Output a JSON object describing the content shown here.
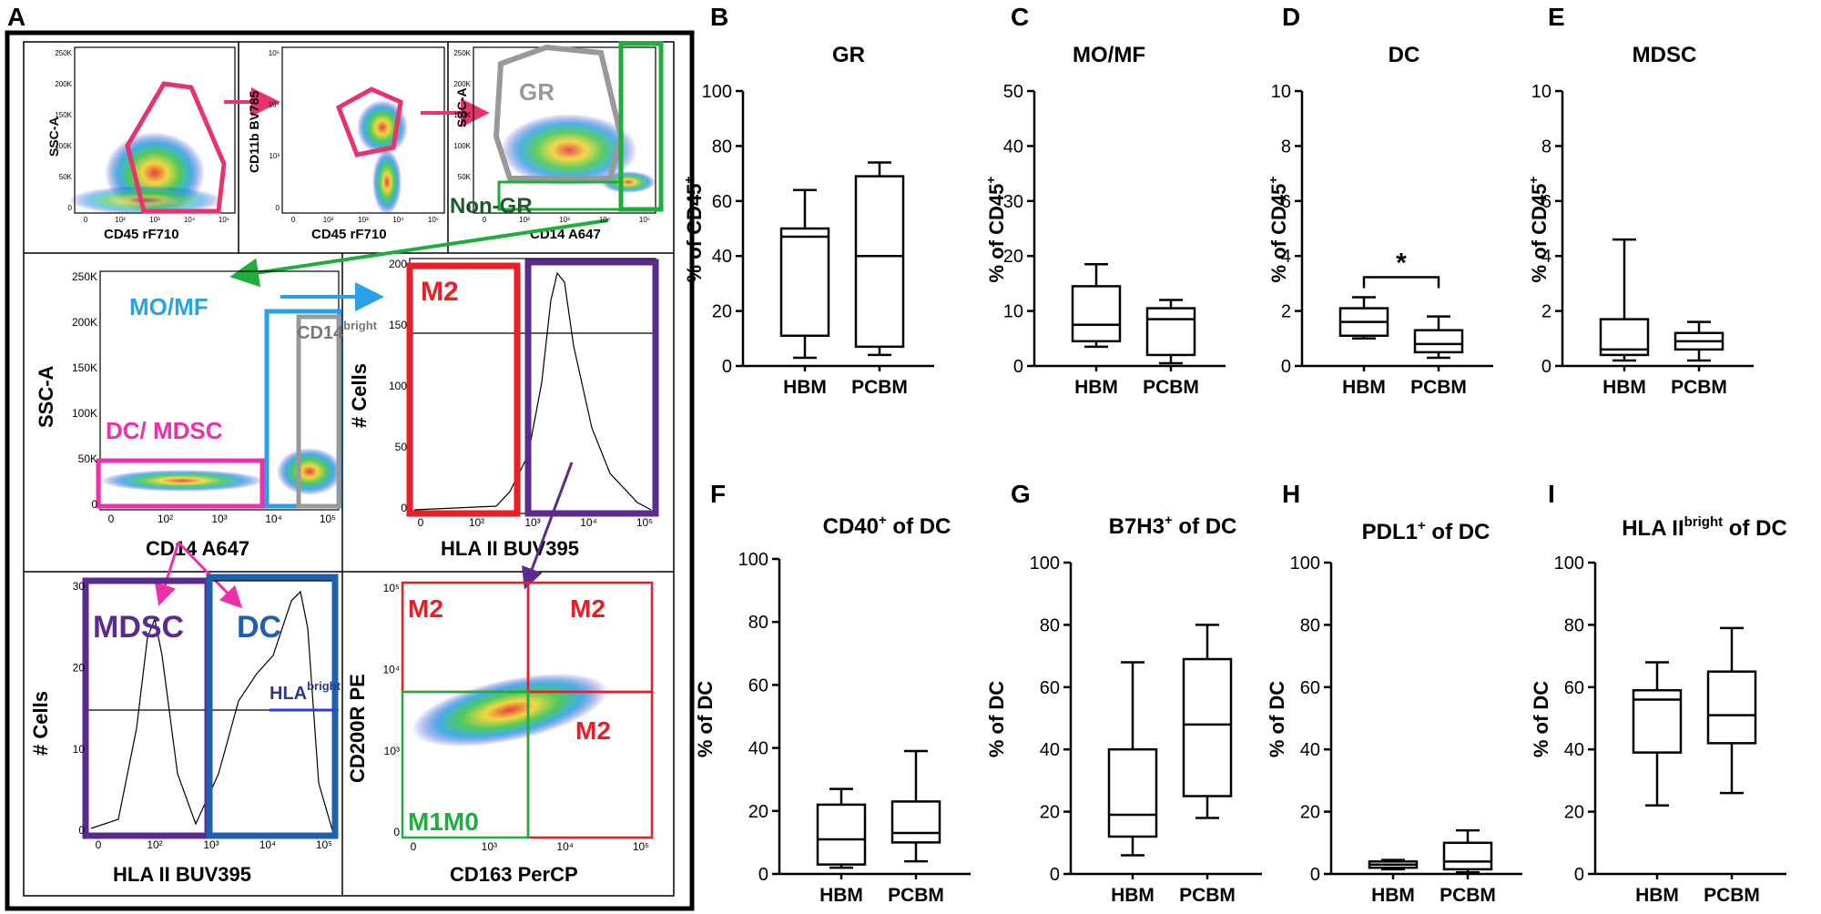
{
  "panel_letters": {
    "A": "A",
    "B": "B",
    "C": "C",
    "D": "D",
    "E": "E",
    "F": "F",
    "G": "G",
    "H": "H",
    "I": "I"
  },
  "flow": {
    "p1": {
      "ylabel": "SSC-A",
      "xlabel": "CD45 rF710",
      "yticks": [
        "250K",
        "200K",
        "150K",
        "100K",
        "50K",
        "0"
      ],
      "xticks": [
        "0",
        "10²",
        "10³",
        "10⁴",
        "10⁵"
      ]
    },
    "p2": {
      "ylabel": "CD11b BV785",
      "xlabel": "CD45 rF710",
      "yticks": [
        "10⁵",
        "10⁴",
        "10³",
        "0"
      ],
      "xticks": [
        "0",
        "10²",
        "10³",
        "10⁴",
        "10⁵"
      ]
    },
    "p3": {
      "ylabel": "SSC-A",
      "xlabel": "CD14 A647",
      "gate_gr": "GR",
      "gate_nongr": "Non-GR",
      "yticks": [
        "250K",
        "200K",
        "150K",
        "100K",
        "50K",
        "0"
      ],
      "xticks": [
        "0",
        "10²",
        "10³",
        "10⁴",
        "10⁵"
      ]
    },
    "p4": {
      "ylabel": "SSC-A",
      "xlabel": "CD14 A647",
      "gate_momf": "MO/MF",
      "gate_dcmdsc": "DC/ MDSC",
      "gate_cd14": "CD14",
      "gate_cd14_sup": "bright",
      "yticks": [
        "250K",
        "200K",
        "150K",
        "100K",
        "50K",
        "0"
      ],
      "xticks": [
        "0",
        "10²",
        "10³",
        "10⁴",
        "10⁵"
      ]
    },
    "p5": {
      "ylabel": "# Cells",
      "xlabel": "HLA II BUV395",
      "gate_m2": "M2",
      "yticks": [
        "200",
        "150",
        "100",
        "50",
        "0"
      ],
      "xticks": [
        "0",
        "10²",
        "10³",
        "10⁴",
        "10⁵"
      ]
    },
    "p6": {
      "ylabel": "# Cells",
      "xlabel": "HLA II BUV395",
      "gate_mdsc": "MDSC",
      "gate_dc": "DC",
      "gate_hla": "HLA",
      "gate_hla_sup": "bright",
      "yticks": [
        "30",
        "20",
        "10",
        "0"
      ],
      "xticks": [
        "0",
        "10²",
        "10³",
        "10⁴",
        "10⁵"
      ]
    },
    "p7": {
      "ylabel": "CD200R PE",
      "xlabel": "CD163 PerCP",
      "gate_m2a": "M2",
      "gate_m2b": "M2",
      "gate_m2c": "M2",
      "gate_m1m0": "M1M0",
      "yticks": [
        "10⁵",
        "10⁴",
        "10³",
        "0"
      ],
      "xticks": [
        "0",
        "10³",
        "10⁴",
        "10⁵"
      ]
    }
  },
  "colors": {
    "pink": "#e8336d",
    "magenta": "#f02fa8",
    "grey": "#999999",
    "green": "#1fae3c",
    "lightblue": "#2aa0e8",
    "red": "#ee1c24",
    "purple": "#5b2a8e",
    "blue": "#1f5fb0",
    "navy": "#2d3a8c"
  },
  "chart_data": [
    {
      "panel": "B",
      "type": "box",
      "title": "GR",
      "ylabel": "% of CD45",
      "ylabel_sup": "+",
      "categories": [
        "HBM",
        "PCBM"
      ],
      "ylim": [
        0,
        100
      ],
      "yticks": [
        "0",
        "20",
        "40",
        "60",
        "80",
        "100"
      ],
      "boxes": [
        {
          "min": 3,
          "q1": 11,
          "median": 47,
          "q3": 50,
          "max": 64
        },
        {
          "min": 4,
          "q1": 7,
          "median": 40,
          "q3": 69,
          "max": 74
        }
      ]
    },
    {
      "panel": "C",
      "type": "box",
      "title": "MO/MF",
      "ylabel": "% of CD45",
      "ylabel_sup": "+",
      "categories": [
        "HBM",
        "PCBM"
      ],
      "ylim": [
        0,
        50
      ],
      "yticks": [
        "0",
        "10",
        "20",
        "30",
        "40",
        "50"
      ],
      "boxes": [
        {
          "min": 3.5,
          "q1": 4.5,
          "median": 7.5,
          "q3": 14.5,
          "max": 18.5
        },
        {
          "min": 0.5,
          "q1": 2,
          "median": 8.5,
          "q3": 10.5,
          "max": 12
        }
      ]
    },
    {
      "panel": "D",
      "type": "box",
      "title": "DC",
      "ylabel": "% of CD45",
      "ylabel_sup": "+",
      "categories": [
        "HBM",
        "PCBM"
      ],
      "ylim": [
        0,
        10
      ],
      "yticks": [
        "0",
        "2",
        "4",
        "6",
        "8",
        "10"
      ],
      "boxes": [
        {
          "min": 1,
          "q1": 1.1,
          "median": 1.6,
          "q3": 2.1,
          "max": 2.5
        },
        {
          "min": 0.3,
          "q1": 0.5,
          "median": 0.8,
          "q3": 1.3,
          "max": 1.8
        }
      ],
      "significance": {
        "label": "*"
      }
    },
    {
      "panel": "E",
      "type": "box",
      "title": "MDSC",
      "ylabel": "% of CD45",
      "ylabel_sup": "+",
      "categories": [
        "HBM",
        "PCBM"
      ],
      "ylim": [
        0,
        10
      ],
      "yticks": [
        "0",
        "2",
        "4",
        "6",
        "8",
        "10"
      ],
      "boxes": [
        {
          "min": 0.2,
          "q1": 0.4,
          "median": 0.6,
          "q3": 1.7,
          "max": 4.6
        },
        {
          "min": 0.2,
          "q1": 0.6,
          "median": 0.9,
          "q3": 1.2,
          "max": 1.6
        }
      ]
    },
    {
      "panel": "F",
      "type": "box",
      "title": "CD40",
      "title_sup": "+",
      "title_suffix": " of DC",
      "ylabel": "% of DC",
      "categories": [
        "HBM",
        "PCBM"
      ],
      "ylim": [
        0,
        100
      ],
      "yticks": [
        "0",
        "20",
        "40",
        "60",
        "80",
        "100"
      ],
      "boxes": [
        {
          "min": 2,
          "q1": 3,
          "median": 11,
          "q3": 22,
          "max": 27
        },
        {
          "min": 4,
          "q1": 10,
          "median": 13,
          "q3": 23,
          "max": 39
        }
      ]
    },
    {
      "panel": "G",
      "type": "box",
      "title": "B7H3",
      "title_sup": "+",
      "title_suffix": " of DC",
      "ylabel": "% of DC",
      "categories": [
        "HBM",
        "PCBM"
      ],
      "ylim": [
        0,
        100
      ],
      "yticks": [
        "0",
        "20",
        "40",
        "60",
        "80",
        "100"
      ],
      "boxes": [
        {
          "min": 6,
          "q1": 12,
          "median": 19,
          "q3": 40,
          "max": 68
        },
        {
          "min": 18,
          "q1": 25,
          "median": 48,
          "q3": 69,
          "max": 80
        }
      ]
    },
    {
      "panel": "H",
      "type": "box",
      "title": "PDL1",
      "title_sup": "+",
      "title_suffix": " of DC",
      "ylabel": "% of DC",
      "categories": [
        "HBM",
        "PCBM"
      ],
      "ylim": [
        0,
        100
      ],
      "yticks": [
        "0",
        "20",
        "40",
        "60",
        "80",
        "100"
      ],
      "boxes": [
        {
          "min": 1.5,
          "q1": 2,
          "median": 3,
          "q3": 4,
          "max": 4.5
        },
        {
          "min": 0.5,
          "q1": 1.5,
          "median": 4,
          "q3": 10,
          "max": 14
        }
      ]
    },
    {
      "panel": "I",
      "type": "box",
      "title": "HLA II",
      "title_sup": "bright",
      "title_suffix": " of DC",
      "ylabel": "% of DC",
      "categories": [
        "HBM",
        "PCBM"
      ],
      "ylim": [
        0,
        100
      ],
      "yticks": [
        "0",
        "20",
        "40",
        "60",
        "80",
        "100"
      ],
      "boxes": [
        {
          "min": 22,
          "q1": 39,
          "median": 56,
          "q3": 59,
          "max": 68
        },
        {
          "min": 26,
          "q1": 42,
          "median": 51,
          "q3": 65,
          "max": 79
        }
      ]
    }
  ]
}
